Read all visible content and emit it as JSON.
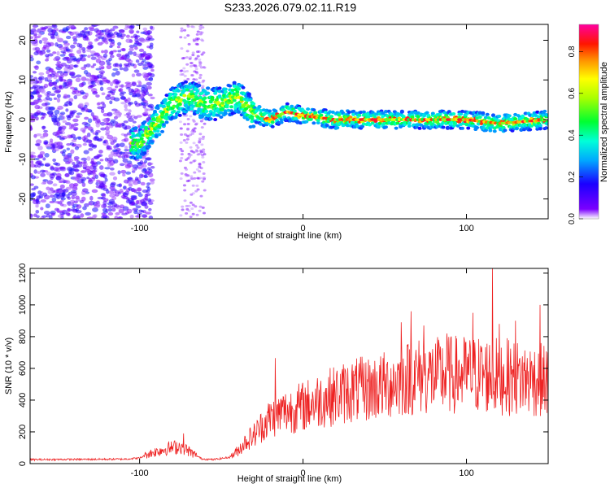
{
  "title": "S233.2026.079.02.11.R19",
  "colors": {
    "snr_line": "#ee2222",
    "frame": "#000000"
  },
  "chart_data": [
    {
      "type": "heatmap",
      "xlabel": "Height of straight line (km)",
      "ylabel": "Frequency (Hz)",
      "xlim": [
        -167,
        150
      ],
      "ylim": [
        -25,
        24
      ],
      "xticks": [
        -100,
        0,
        100
      ],
      "yticks": [
        -20,
        -10,
        0,
        10,
        20
      ],
      "colorbar": {
        "label": "Normalized spectral amplitude",
        "range": [
          0,
          0.93
        ],
        "ticks": [
          "0.0",
          "0.2",
          "0.4",
          "0.6",
          "0.8"
        ],
        "colormap": "rainbow"
      },
      "ridge": {
        "points": [
          [
            -100,
            -6
          ],
          [
            -90,
            -1
          ],
          [
            -80,
            4
          ],
          [
            -70,
            6
          ],
          [
            -60,
            4
          ],
          [
            -50,
            4
          ],
          [
            -40,
            6
          ],
          [
            -32,
            2
          ],
          [
            -20,
            0
          ],
          [
            -10,
            2
          ],
          [
            0,
            1
          ],
          [
            20,
            0
          ],
          [
            40,
            0
          ],
          [
            60,
            0
          ],
          [
            80,
            0
          ],
          [
            100,
            0
          ],
          [
            120,
            -1
          ],
          [
            150,
            0
          ]
        ]
      }
    },
    {
      "type": "line",
      "xlabel": "Height of straight line (km)",
      "ylabel": "SNR (10 * v/v)",
      "xlim": [
        -167,
        150
      ],
      "ylim": [
        0,
        1230
      ],
      "xticks": [
        -100,
        0,
        100
      ],
      "yticks": [
        0,
        200,
        400,
        600,
        800,
        1000,
        1200
      ],
      "envelope": [
        [
          -167,
          25
        ],
        [
          -110,
          28
        ],
        [
          -100,
          35
        ],
        [
          -95,
          60
        ],
        [
          -85,
          90
        ],
        [
          -75,
          110
        ],
        [
          -70,
          80
        ],
        [
          -62,
          30
        ],
        [
          -55,
          25
        ],
        [
          -45,
          40
        ],
        [
          -40,
          80
        ],
        [
          -35,
          140
        ],
        [
          -30,
          180
        ],
        [
          -25,
          240
        ],
        [
          -20,
          290
        ],
        [
          -10,
          330
        ],
        [
          0,
          360
        ],
        [
          10,
          400
        ],
        [
          20,
          430
        ],
        [
          30,
          460
        ],
        [
          40,
          470
        ],
        [
          50,
          490
        ],
        [
          60,
          530
        ],
        [
          70,
          550
        ],
        [
          80,
          550
        ],
        [
          90,
          560
        ],
        [
          100,
          560
        ],
        [
          110,
          560
        ],
        [
          120,
          550
        ],
        [
          130,
          540
        ],
        [
          140,
          530
        ],
        [
          150,
          520
        ]
      ],
      "peaks": [
        [
          -73,
          190
        ],
        [
          -17,
          665
        ],
        [
          -12,
          420
        ],
        [
          48,
          520
        ],
        [
          60,
          890
        ],
        [
          66,
          960
        ],
        [
          74,
          870
        ],
        [
          88,
          820
        ],
        [
          104,
          950
        ],
        [
          116,
          1230
        ],
        [
          120,
          880
        ],
        [
          130,
          900
        ],
        [
          141,
          620
        ],
        [
          145,
          1000
        ]
      ]
    }
  ]
}
